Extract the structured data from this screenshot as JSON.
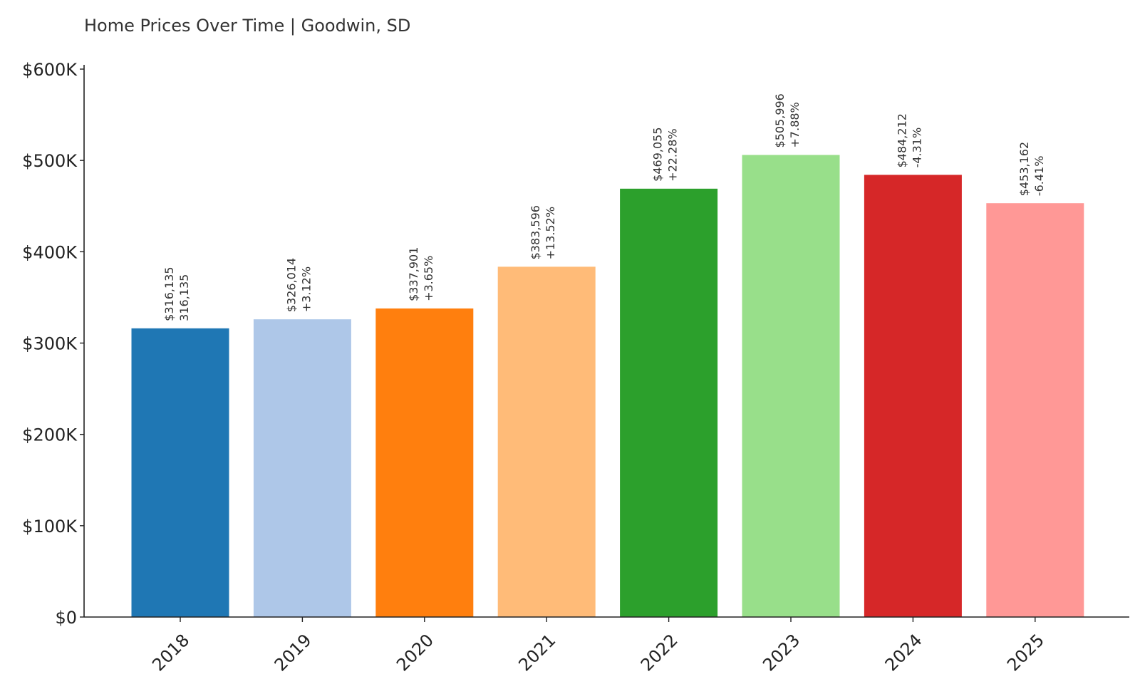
{
  "chart_data": {
    "type": "bar",
    "title": "Home Prices Over Time | Goodwin, SD",
    "xlabel": "",
    "ylabel": "",
    "categories": [
      "2018",
      "2019",
      "2020",
      "2021",
      "2022",
      "2023",
      "2024",
      "2025"
    ],
    "values": [
      316135,
      326014,
      337901,
      383596,
      469055,
      505996,
      484212,
      453162
    ],
    "value_labels": [
      "$316,135",
      "$326,014",
      "$337,901",
      "$383,596",
      "$469,055",
      "$505,996",
      "$484,212",
      "$453,162"
    ],
    "change_labels": [
      "316,135",
      "+3.12%",
      "+3.65%",
      "+13.52%",
      "+22.28%",
      "+7.88%",
      "-4.31%",
      "-6.41%"
    ],
    "colors": [
      "#1f77b4",
      "#aec7e8",
      "#ff7f0e",
      "#ffbb78",
      "#2ca02c",
      "#98df8a",
      "#d62728",
      "#ff9896"
    ],
    "ylim": [
      0,
      600000
    ],
    "y_ticks": [
      0,
      100000,
      200000,
      300000,
      400000,
      500000,
      600000
    ],
    "y_tick_labels": [
      "$0",
      "$100K",
      "$200K",
      "$300K",
      "$400K",
      "$500K",
      "$600K"
    ],
    "grid": false,
    "legend": "none"
  }
}
